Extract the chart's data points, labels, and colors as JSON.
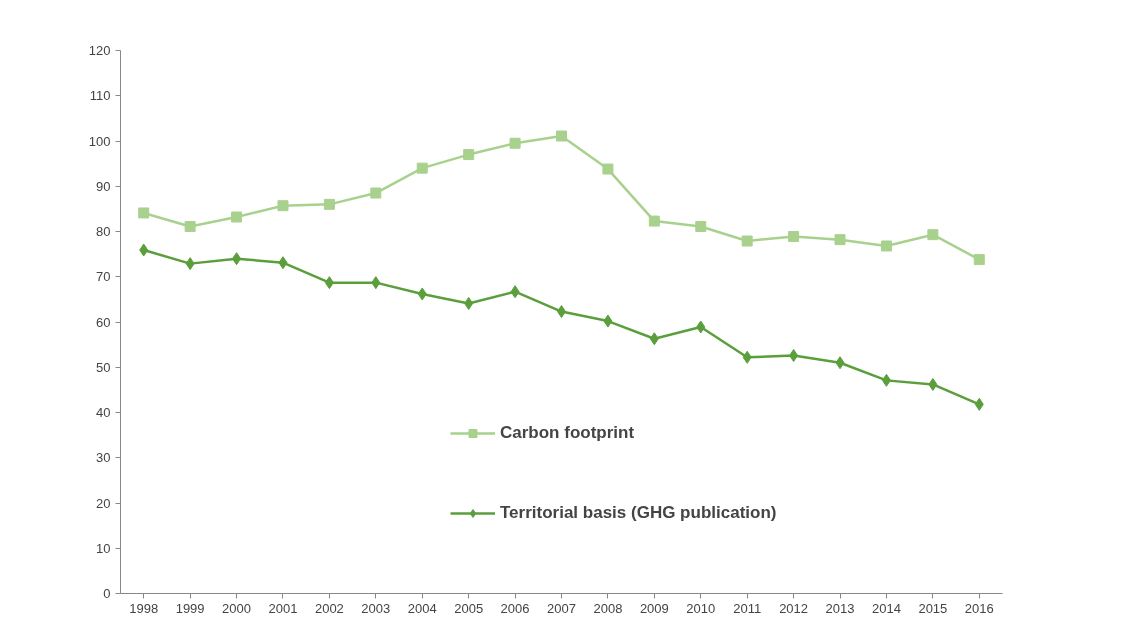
{
  "chart_data": {
    "type": "line",
    "categories": [
      "1998",
      "1999",
      "2000",
      "2001",
      "2002",
      "2003",
      "2004",
      "2005",
      "2006",
      "2007",
      "2008",
      "2009",
      "2010",
      "2011",
      "2012",
      "2013",
      "2014",
      "2015",
      "2016"
    ],
    "series": [
      {
        "name": "Carbon footprint",
        "color": "#a9d18e",
        "marker": "square",
        "values": [
          84.1,
          81.1,
          83.2,
          85.7,
          86,
          88.5,
          94,
          97,
          99.5,
          101.1,
          93.8,
          82.3,
          81.1,
          77.9,
          78.9,
          78.2,
          76.8,
          79.3,
          73.8
        ]
      },
      {
        "name": "Territorial basis (GHG publication)",
        "color": "#5b9f3c",
        "marker": "diamond",
        "values": [
          75.9,
          72.9,
          74,
          73.1,
          68.7,
          68.7,
          66.2,
          64.1,
          66.7,
          62.3,
          60.2,
          56.3,
          58.9,
          52.2,
          52.6,
          51,
          47.1,
          46.2,
          41.8
        ]
      }
    ],
    "ylim": [
      0,
      120
    ],
    "yticks": [
      0,
      10,
      20,
      30,
      40,
      50,
      60,
      70,
      80,
      90,
      100,
      110,
      120
    ],
    "grid": false,
    "legend": "bottom",
    "line_style": "solid"
  }
}
